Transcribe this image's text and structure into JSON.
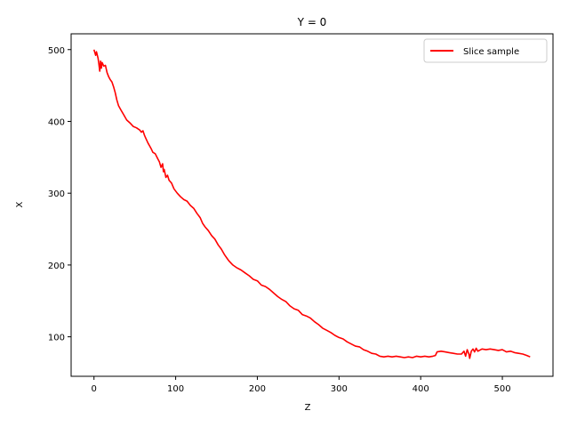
{
  "chart_data": {
    "type": "line",
    "title": "Y = 0",
    "xlabel": "Z",
    "ylabel": "X",
    "xlim": [
      -28,
      562
    ],
    "ylim": [
      45,
      522
    ],
    "xticks": [
      0,
      100,
      200,
      300,
      400,
      500
    ],
    "yticks": [
      100,
      200,
      300,
      400,
      500
    ],
    "grid": false,
    "legend_position": "top-right",
    "series": [
      {
        "name": "Slice sample",
        "color": "#ff0000",
        "points": [
          [
            0,
            500
          ],
          [
            2,
            492
          ],
          [
            3,
            497
          ],
          [
            5,
            488
          ],
          [
            6,
            480
          ],
          [
            7,
            470
          ],
          [
            8,
            484
          ],
          [
            9,
            474
          ],
          [
            10,
            482
          ],
          [
            12,
            477
          ],
          [
            14,
            478
          ],
          [
            16,
            468
          ],
          [
            18,
            462
          ],
          [
            20,
            458
          ],
          [
            22,
            455
          ],
          [
            24,
            448
          ],
          [
            26,
            440
          ],
          [
            28,
            430
          ],
          [
            30,
            422
          ],
          [
            33,
            416
          ],
          [
            36,
            410
          ],
          [
            40,
            402
          ],
          [
            44,
            398
          ],
          [
            48,
            393
          ],
          [
            52,
            391
          ],
          [
            56,
            388
          ],
          [
            58,
            385
          ],
          [
            60,
            387
          ],
          [
            62,
            380
          ],
          [
            64,
            375
          ],
          [
            66,
            370
          ],
          [
            68,
            366
          ],
          [
            70,
            362
          ],
          [
            72,
            357
          ],
          [
            75,
            355
          ],
          [
            78,
            348
          ],
          [
            80,
            344
          ],
          [
            82,
            336
          ],
          [
            84,
            341
          ],
          [
            85,
            330
          ],
          [
            86,
            333
          ],
          [
            88,
            322
          ],
          [
            90,
            325
          ],
          [
            92,
            318
          ],
          [
            95,
            314
          ],
          [
            98,
            306
          ],
          [
            102,
            300
          ],
          [
            106,
            295
          ],
          [
            110,
            291
          ],
          [
            114,
            289
          ],
          [
            118,
            283
          ],
          [
            122,
            279
          ],
          [
            126,
            272
          ],
          [
            130,
            266
          ],
          [
            133,
            258
          ],
          [
            136,
            253
          ],
          [
            140,
            248
          ],
          [
            144,
            241
          ],
          [
            148,
            236
          ],
          [
            152,
            228
          ],
          [
            156,
            222
          ],
          [
            160,
            214
          ],
          [
            165,
            206
          ],
          [
            170,
            200
          ],
          [
            175,
            196
          ],
          [
            180,
            193
          ],
          [
            185,
            189
          ],
          [
            190,
            185
          ],
          [
            195,
            180
          ],
          [
            200,
            178
          ],
          [
            205,
            172
          ],
          [
            210,
            170
          ],
          [
            215,
            166
          ],
          [
            220,
            161
          ],
          [
            225,
            156
          ],
          [
            230,
            152
          ],
          [
            235,
            149
          ],
          [
            240,
            143
          ],
          [
            245,
            139
          ],
          [
            250,
            137
          ],
          [
            255,
            131
          ],
          [
            260,
            129
          ],
          [
            265,
            126
          ],
          [
            270,
            121
          ],
          [
            275,
            117
          ],
          [
            280,
            112
          ],
          [
            285,
            109
          ],
          [
            290,
            106
          ],
          [
            295,
            102
          ],
          [
            300,
            99
          ],
          [
            305,
            97
          ],
          [
            310,
            93
          ],
          [
            315,
            90
          ],
          [
            320,
            87
          ],
          [
            325,
            86
          ],
          [
            330,
            82
          ],
          [
            335,
            80
          ],
          [
            340,
            77
          ],
          [
            345,
            76
          ],
          [
            350,
            73
          ],
          [
            355,
            72
          ],
          [
            360,
            73
          ],
          [
            365,
            72
          ],
          [
            370,
            73
          ],
          [
            375,
            72
          ],
          [
            380,
            71
          ],
          [
            385,
            72
          ],
          [
            390,
            71
          ],
          [
            395,
            73
          ],
          [
            400,
            72
          ],
          [
            405,
            73
          ],
          [
            410,
            72
          ],
          [
            415,
            73
          ],
          [
            418,
            74
          ],
          [
            420,
            79
          ],
          [
            425,
            80
          ],
          [
            430,
            79
          ],
          [
            435,
            78
          ],
          [
            440,
            77
          ],
          [
            445,
            76
          ],
          [
            450,
            76
          ],
          [
            453,
            80
          ],
          [
            455,
            73
          ],
          [
            457,
            82
          ],
          [
            459,
            76
          ],
          [
            460,
            70
          ],
          [
            462,
            80
          ],
          [
            464,
            83
          ],
          [
            466,
            79
          ],
          [
            468,
            84
          ],
          [
            470,
            80
          ],
          [
            475,
            83
          ],
          [
            480,
            82
          ],
          [
            485,
            83
          ],
          [
            490,
            82
          ],
          [
            495,
            81
          ],
          [
            500,
            82
          ],
          [
            505,
            79
          ],
          [
            510,
            80
          ],
          [
            515,
            78
          ],
          [
            520,
            77
          ],
          [
            525,
            76
          ],
          [
            530,
            74
          ],
          [
            534,
            72
          ]
        ]
      }
    ]
  }
}
